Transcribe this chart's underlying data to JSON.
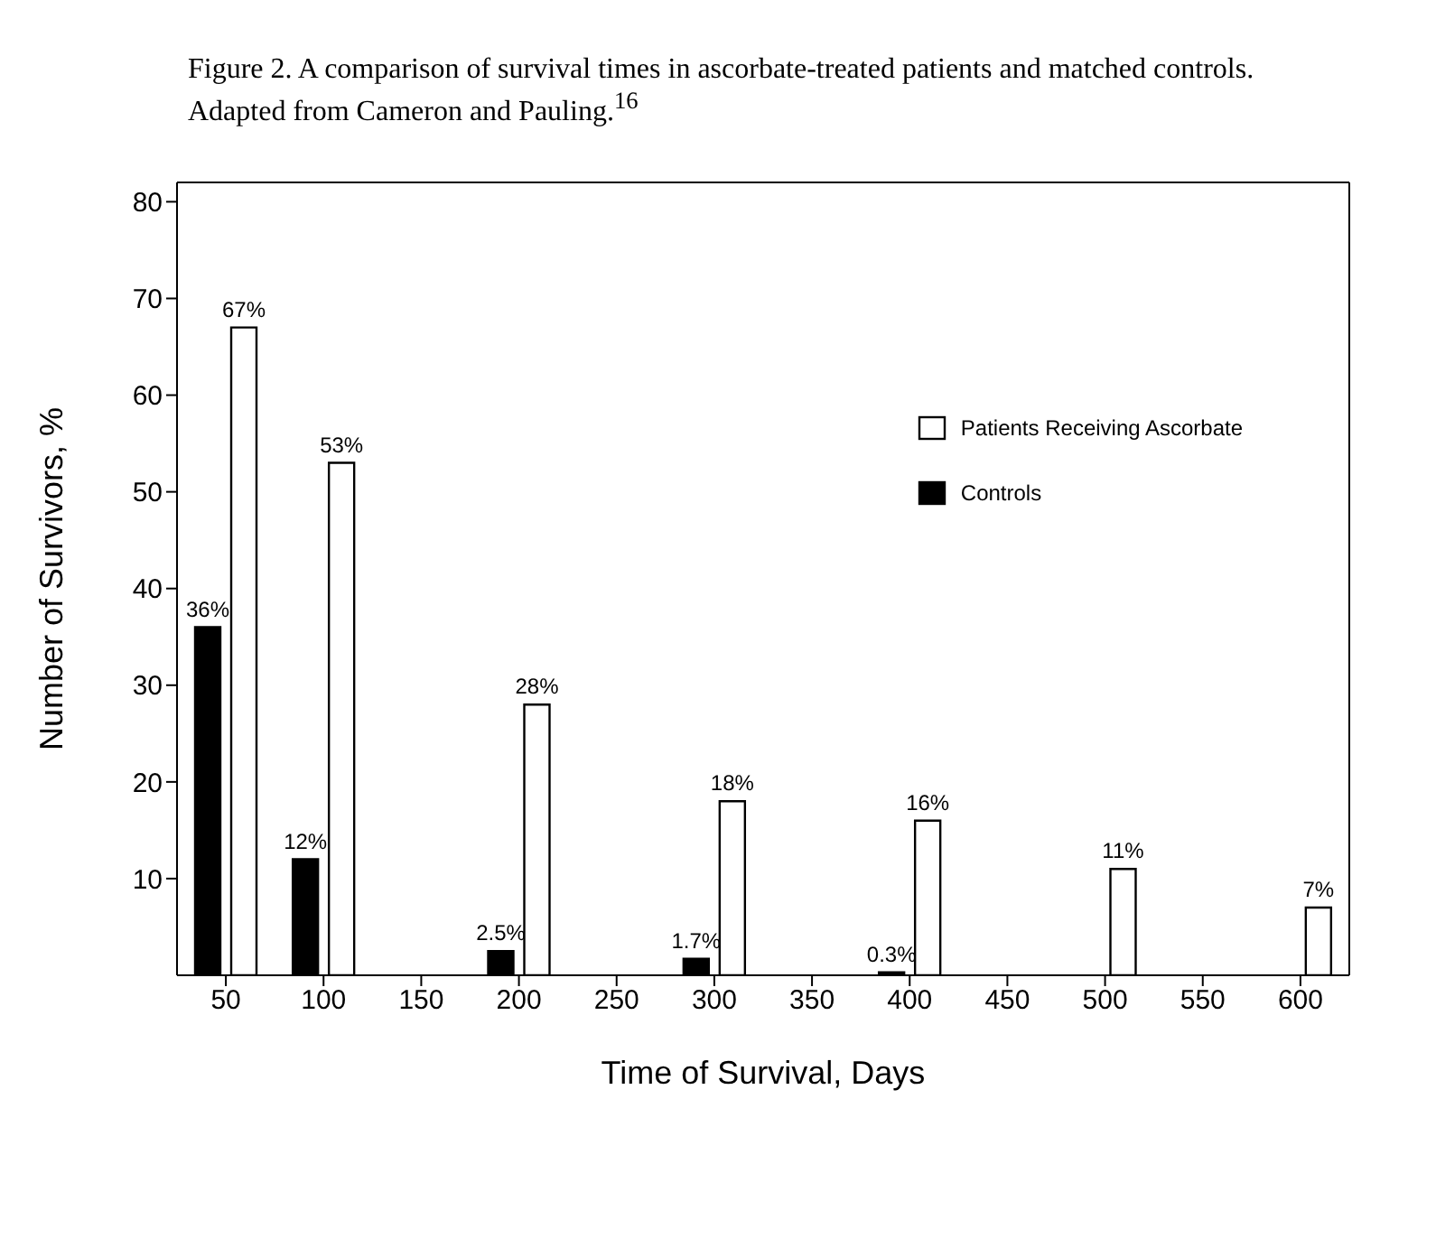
{
  "chart_data": {
    "type": "bar",
    "title": "Figure 2.  A comparison of survival times in ascorbate-treated patients and matched controls.  Adapted from Cameron and Pauling.$^{16}$",
    "xlabel": "Time of Survival, Days",
    "ylabel": "Number of Survivors, %",
    "categories": [
      "50",
      "100",
      "150",
      "200",
      "250",
      "300",
      "350",
      "400",
      "450",
      "500",
      "550",
      "600"
    ],
    "series": [
      {
        "name": "Controls",
        "color": "#000000",
        "values": [
          36,
          12,
          null,
          2.5,
          null,
          1.7,
          null,
          0.3,
          null,
          null,
          null,
          null
        ],
        "value_labels": [
          "36%",
          "12%",
          null,
          "2.5%",
          null,
          "1.7%",
          null,
          "0.3%",
          null,
          null,
          null,
          null
        ]
      },
      {
        "name": "Patients Receiving Ascorbate",
        "color": "#ffffff",
        "values": [
          67,
          53,
          null,
          28,
          null,
          18,
          null,
          16,
          null,
          11,
          null,
          7
        ],
        "value_labels": [
          "67%",
          "53%",
          null,
          "28%",
          null,
          "18%",
          null,
          "16%",
          null,
          "11%",
          null,
          "7%"
        ]
      }
    ],
    "ylim": [
      0,
      82
    ],
    "yticks": [
      10,
      20,
      30,
      40,
      50,
      60,
      70,
      80
    ],
    "grid": false,
    "legend": "top right"
  }
}
